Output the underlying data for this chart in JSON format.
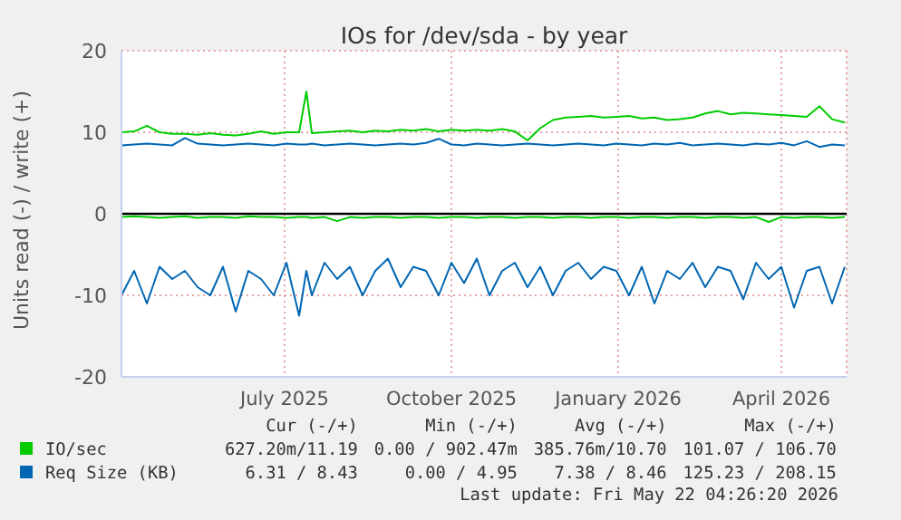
{
  "chart_data": {
    "type": "line",
    "title": "IOs for /dev/sda - by year",
    "ylabel": "Units read (-) / write (+)",
    "x": [
      "2025-04-17",
      "2025-04-24",
      "2025-05-01",
      "2025-05-08",
      "2025-05-15",
      "2025-05-22",
      "2025-05-29",
      "2025-06-05",
      "2025-06-12",
      "2025-06-19",
      "2025-06-26",
      "2025-07-03",
      "2025-07-10",
      "2025-07-17",
      "2025-07-24",
      "2025-07-28",
      "2025-07-31",
      "2025-08-07",
      "2025-08-14",
      "2025-08-21",
      "2025-08-28",
      "2025-09-04",
      "2025-09-11",
      "2025-09-18",
      "2025-09-25",
      "2025-10-02",
      "2025-10-09",
      "2025-10-16",
      "2025-10-23",
      "2025-10-30",
      "2025-11-06",
      "2025-11-13",
      "2025-11-20",
      "2025-11-27",
      "2025-12-04",
      "2025-12-11",
      "2025-12-18",
      "2025-12-25",
      "2026-01-01",
      "2026-01-08",
      "2026-01-15",
      "2026-01-22",
      "2026-01-29",
      "2026-02-05",
      "2026-02-12",
      "2026-02-19",
      "2026-02-26",
      "2026-03-05",
      "2026-03-12",
      "2026-03-19",
      "2026-03-26",
      "2026-04-02",
      "2026-04-09",
      "2026-04-16",
      "2026-04-23",
      "2026-04-30",
      "2026-05-07",
      "2026-05-14",
      "2026-05-21"
    ],
    "series": [
      {
        "name": "IO/sec",
        "color": "#00cc00",
        "values": [
          10,
          10.1,
          10.8,
          10,
          9.8,
          9.8,
          9.7,
          9.9,
          9.7,
          9.6,
          9.8,
          10.1,
          9.8,
          10,
          10,
          15,
          9.9,
          10,
          10.1,
          10.2,
          10,
          10.2,
          10.1,
          10.3,
          10.2,
          10.4,
          10.1,
          10.3,
          10.2,
          10.3,
          10.2,
          10.4,
          10.1,
          9,
          10.5,
          11.5,
          11.8,
          11.9,
          12,
          11.8,
          11.9,
          12,
          11.7,
          11.8,
          11.5,
          11.6,
          11.8,
          12.3,
          12.6,
          12.2,
          12.4,
          12.3,
          12.2,
          12.1,
          12,
          11.9,
          13.2,
          11.6,
          11.2
        ]
      },
      {
        "color": "#00cc00",
        "values": [
          -0.4,
          -0.3,
          -0.4,
          -0.5,
          -0.4,
          -0.3,
          -0.5,
          -0.4,
          -0.4,
          -0.5,
          -0.3,
          -0.4,
          -0.4,
          -0.5,
          -0.4,
          -0.4,
          -0.5,
          -0.4,
          -0.9,
          -0.4,
          -0.5,
          -0.4,
          -0.4,
          -0.5,
          -0.4,
          -0.4,
          -0.5,
          -0.4,
          -0.4,
          -0.5,
          -0.4,
          -0.4,
          -0.5,
          -0.4,
          -0.4,
          -0.5,
          -0.4,
          -0.4,
          -0.5,
          -0.4,
          -0.4,
          -0.5,
          -0.4,
          -0.4,
          -0.5,
          -0.4,
          -0.4,
          -0.5,
          -0.4,
          -0.4,
          -0.5,
          -0.4,
          -1,
          -0.4,
          -0.5,
          -0.4,
          -0.4,
          -0.5,
          -0.4
        ]
      },
      {
        "name": "Req Size (KB)",
        "color": "#0066b3",
        "values": [
          8.4,
          8.5,
          8.6,
          8.5,
          8.4,
          9.3,
          8.6,
          8.5,
          8.4,
          8.5,
          8.6,
          8.5,
          8.4,
          8.6,
          8.5,
          8.5,
          8.6,
          8.4,
          8.5,
          8.6,
          8.5,
          8.4,
          8.5,
          8.6,
          8.5,
          8.7,
          9.2,
          8.5,
          8.4,
          8.6,
          8.5,
          8.4,
          8.5,
          8.6,
          8.5,
          8.4,
          8.5,
          8.6,
          8.5,
          8.4,
          8.6,
          8.5,
          8.4,
          8.6,
          8.5,
          8.7,
          8.4,
          8.5,
          8.6,
          8.5,
          8.4,
          8.6,
          8.5,
          8.7,
          8.4,
          8.9,
          8.2,
          8.5,
          8.4
        ]
      },
      {
        "color": "#0066b3",
        "values": [
          -10,
          -7,
          -11,
          -6.5,
          -8,
          -7,
          -9,
          -10,
          -6.5,
          -12,
          -7,
          -8,
          -10,
          -6,
          -12.5,
          -7,
          -10,
          -6,
          -8,
          -6.5,
          -10,
          -7,
          -5.5,
          -9,
          -6.5,
          -7,
          -10,
          -6,
          -8.5,
          -5.5,
          -10,
          -7,
          -6,
          -9,
          -6.5,
          -10,
          -7,
          -6,
          -8,
          -6.5,
          -7,
          -10,
          -6.5,
          -11,
          -7,
          -8,
          -6,
          -9,
          -6.5,
          -7,
          -10.5,
          -6,
          -8,
          -6.5,
          -11.5,
          -7,
          -6.5,
          -11,
          -6.5
        ]
      }
    ],
    "xlim": [
      "2025-04-17",
      "2026-05-22"
    ],
    "xticks": [
      {
        "value": "2025-07-16",
        "label": "July 2025"
      },
      {
        "value": "2025-10-16",
        "label": "October 2025"
      },
      {
        "value": "2026-01-16",
        "label": "January 2026"
      },
      {
        "value": "2026-04-16",
        "label": "April 2026"
      }
    ],
    "ylim": [
      -20,
      20
    ],
    "yticks": [
      -20,
      -10,
      0,
      10,
      20
    ],
    "grid": true,
    "legend": "bottom left",
    "ref_lines": [
      {
        "axis": "y",
        "value": 0,
        "color": "#000000"
      }
    ],
    "annotations": [
      "Cur (-/+)",
      "Min (-/+)",
      "Avg (-/+)",
      "Max (-/+)",
      "627.20m/11.19",
      "0.00 / 902.47m",
      "385.76m/10.70",
      "101.07 / 106.70",
      "6.31 / 8.43",
      "0.00 / 4.95",
      "7.38 / 8.46",
      "125.23 / 208.15",
      "Last update: Fri May 22 04:26:20 2026"
    ]
  }
}
